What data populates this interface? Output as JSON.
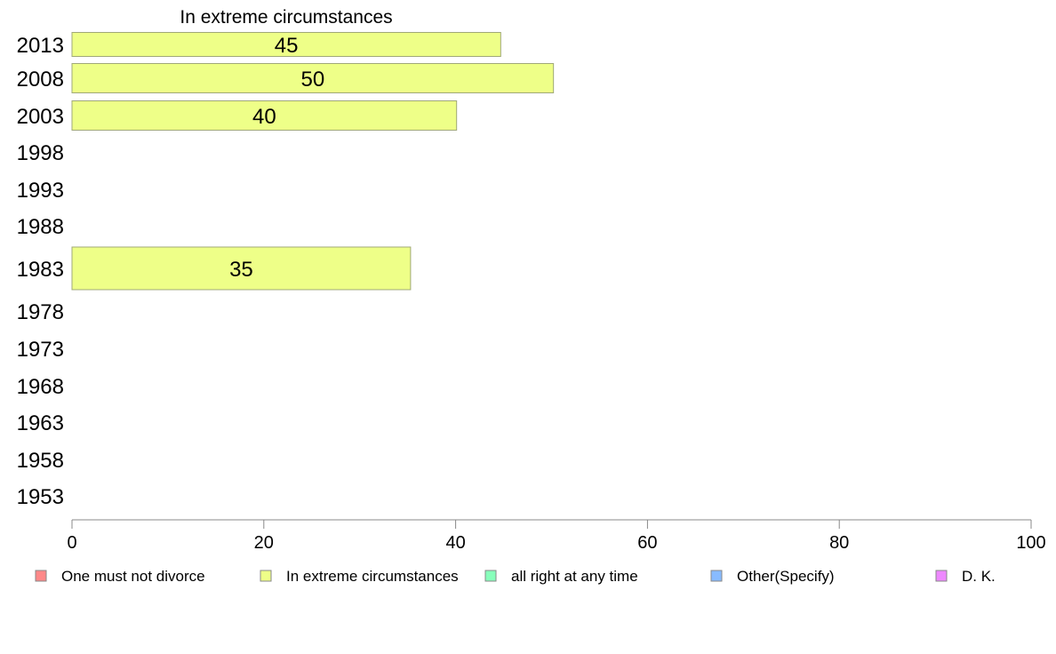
{
  "chart_data": {
    "type": "bar",
    "orientation": "horizontal",
    "title": "In extreme circumstances",
    "xlabel": "",
    "ylabel": "",
    "xlim": [
      0,
      100
    ],
    "x_ticks": [
      "0",
      "20",
      "40",
      "60",
      "80",
      "100"
    ],
    "categories": [
      "2013",
      "2008",
      "2003",
      "1998",
      "1993",
      "1988",
      "1983",
      "1978",
      "1973",
      "1968",
      "1963",
      "1958",
      "1953"
    ],
    "series": [
      {
        "name": "In extreme circumstances",
        "color": "#EEFF88",
        "values": [
          44.7,
          50.2,
          40.1,
          null,
          null,
          null,
          35.3,
          null,
          null,
          null,
          null,
          null,
          null
        ],
        "labels": [
          "45",
          "50",
          "40",
          "",
          "",
          "",
          "35",
          "",
          "",
          "",
          "",
          "",
          ""
        ]
      }
    ],
    "legend": {
      "position": "bottom",
      "items": [
        {
          "label": "One must not divorce",
          "color": "#FF8888"
        },
        {
          "label": "In extreme circumstances",
          "color": "#EEFF88"
        },
        {
          "label": "all right at any time",
          "color": "#88FFBB"
        },
        {
          "label": "Other(Specify)",
          "color": "#88BBFF"
        },
        {
          "label": "D. K.",
          "color": "#EE88FF"
        }
      ]
    },
    "grid": false
  }
}
